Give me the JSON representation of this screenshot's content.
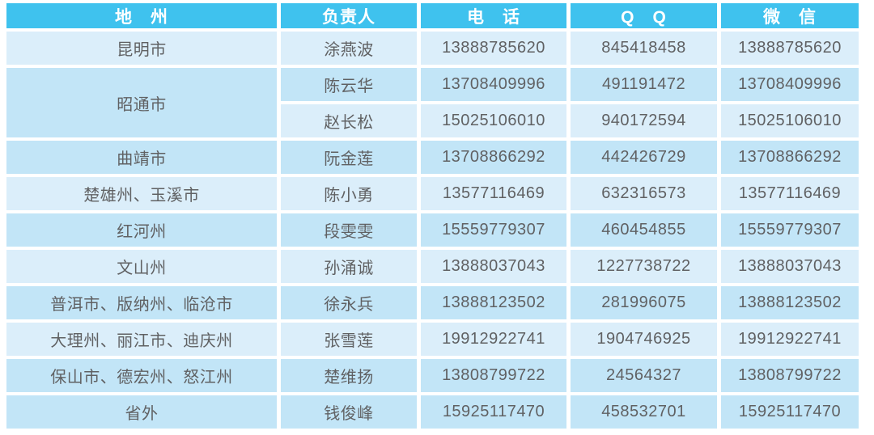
{
  "colors": {
    "header_bg": "#3fc2ee",
    "header_text": "#ffffff",
    "row_light_bg": "#dbeefa",
    "row_dark_bg": "#c2e5f7",
    "body_text": "#606163",
    "gap": "#ffffff"
  },
  "table": {
    "columns": [
      {
        "key": "region",
        "label": "地　州"
      },
      {
        "key": "manager",
        "label": "负责人"
      },
      {
        "key": "phone",
        "label": "电　话"
      },
      {
        "key": "qq",
        "label": "Q　Q"
      },
      {
        "key": "wechat",
        "label": "微　信"
      }
    ],
    "rows": [
      {
        "region": "昆明市",
        "region_rowspan": 1,
        "manager": "涂燕波",
        "phone": "13888785620",
        "qq": "845418458",
        "wechat": "13888785620",
        "shade": "light"
      },
      {
        "region": "昭通市",
        "region_rowspan": 2,
        "manager": "陈云华",
        "phone": "13708409996",
        "qq": "491191472",
        "wechat": "13708409996",
        "shade": "dark"
      },
      {
        "region": "",
        "region_rowspan": 0,
        "manager": "赵长松",
        "phone": "15025106010",
        "qq": "940172594",
        "wechat": "15025106010",
        "shade": "light"
      },
      {
        "region": "曲靖市",
        "region_rowspan": 1,
        "manager": "阮金莲",
        "phone": "13708866292",
        "qq": "442426729",
        "wechat": "13708866292",
        "shade": "dark"
      },
      {
        "region": "楚雄州、玉溪市",
        "region_rowspan": 1,
        "manager": "陈小勇",
        "phone": "13577116469",
        "qq": "632316573",
        "wechat": "13577116469",
        "shade": "light"
      },
      {
        "region": "红河州",
        "region_rowspan": 1,
        "manager": "段雯雯",
        "phone": "15559779307",
        "qq": "460454855",
        "wechat": "15559779307",
        "shade": "dark"
      },
      {
        "region": "文山州",
        "region_rowspan": 1,
        "manager": "孙涌诚",
        "phone": "13888037043",
        "qq": "1227738722",
        "wechat": "13888037043",
        "shade": "light"
      },
      {
        "region": "普洱市、版纳州、临沧市",
        "region_rowspan": 1,
        "manager": "徐永兵",
        "phone": "13888123502",
        "qq": "281996075",
        "wechat": "13888123502",
        "shade": "dark"
      },
      {
        "region": "大理州、丽江市、迪庆州",
        "region_rowspan": 1,
        "manager": "张雪莲",
        "phone": "19912922741",
        "qq": "1904746925",
        "wechat": "19912922741",
        "shade": "light"
      },
      {
        "region": "保山市、德宏州、怒江州",
        "region_rowspan": 1,
        "manager": "楚维扬",
        "phone": "13808799722",
        "qq": "24564327",
        "wechat": "13808799722",
        "shade": "dark"
      },
      {
        "region": "省外",
        "region_rowspan": 1,
        "manager": "钱俊峰",
        "phone": "15925117470",
        "qq": "458532701",
        "wechat": "15925117470",
        "shade": "dark"
      }
    ]
  }
}
